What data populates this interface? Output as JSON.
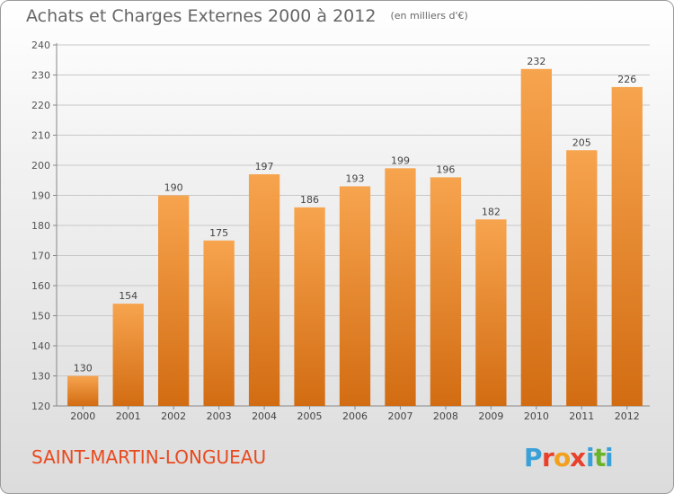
{
  "header": {
    "title": "Achats et Charges Externes 2000 à 2012",
    "unit": "(en milliers d'€)"
  },
  "footer": {
    "commune": "SAINT-MARTIN-LONGUEAU",
    "logo_text": "Proxiti"
  },
  "colors": {
    "bar_top": "#f7a44e",
    "bar_bottom": "#d26c12",
    "text": "#666666",
    "commune": "#e84a1f",
    "logo": [
      "#3aa0d8",
      "#e8402a",
      "#f2a01e",
      "#e8402a",
      "#3aa0d8",
      "#6ab42a",
      "#3aa0d8"
    ]
  },
  "chart_data": {
    "type": "bar",
    "title": "Achats et Charges Externes 2000 à 2012",
    "subtitle": "(en milliers d'€)",
    "categories": [
      "2000",
      "2001",
      "2002",
      "2003",
      "2004",
      "2005",
      "2006",
      "2007",
      "2008",
      "2009",
      "2010",
      "2011",
      "2012"
    ],
    "values": [
      130,
      154,
      190,
      175,
      197,
      186,
      193,
      199,
      196,
      182,
      232,
      205,
      226
    ],
    "ylim": [
      120,
      240
    ],
    "yticks": [
      120,
      130,
      140,
      150,
      160,
      170,
      180,
      190,
      200,
      210,
      220,
      230,
      240
    ],
    "grid": true,
    "xlabel": "",
    "ylabel": ""
  }
}
